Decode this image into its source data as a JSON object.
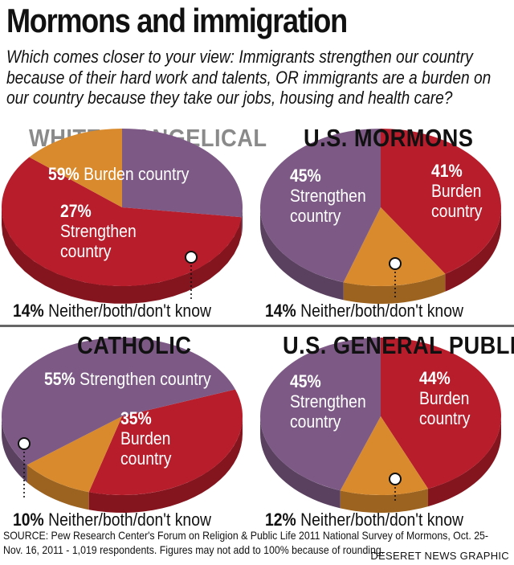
{
  "title": "Mormons and immigration",
  "question": "Which comes closer to your view: Immigrants strengthen our country because of their hard work and talents, OR immigrants are a burden on our country because they take our jobs, housing and health care?",
  "colors": {
    "burden": "#b71d2b",
    "strengthen": "#7d5a85",
    "neither": "#d88a2c"
  },
  "chart_data": [
    {
      "type": "pie",
      "title": "WHITE EVANGELICAL",
      "slices": [
        {
          "label": "Burden country",
          "value": 59
        },
        {
          "label": "Strengthen country",
          "value": 27
        },
        {
          "label": "Neither/both/don't know",
          "value": 14
        }
      ]
    },
    {
      "type": "pie",
      "title": "U.S. MORMONS",
      "slices": [
        {
          "label": "Burden country",
          "value": 41
        },
        {
          "label": "Strengthen country",
          "value": 45
        },
        {
          "label": "Neither/both/don't know",
          "value": 14
        }
      ]
    },
    {
      "type": "pie",
      "title": "CATHOLIC",
      "slices": [
        {
          "label": "Burden country",
          "value": 35
        },
        {
          "label": "Strengthen country",
          "value": 55
        },
        {
          "label": "Neither/both/don't know",
          "value": 10
        }
      ]
    },
    {
      "type": "pie",
      "title": "U.S. GENERAL PUBLIC",
      "slices": [
        {
          "label": "Burden country",
          "value": 44
        },
        {
          "label": "Strengthen country",
          "value": 45
        },
        {
          "label": "Neither/both/don't know",
          "value": 12
        }
      ]
    }
  ],
  "labels": {
    "evangelical": {
      "burden_pct": "59%",
      "burden_text": "Burden country",
      "strengthen_pct": "27%",
      "strengthen_l1": "Strengthen",
      "strengthen_l2": "country",
      "neither_pct": "14%",
      "neither_text": "Neither/both/don't know"
    },
    "mormons": {
      "strengthen_pct": "45%",
      "strengthen_l1": "Strengthen",
      "strengthen_l2": "country",
      "burden_pct": "41%",
      "burden_l1": "Burden",
      "burden_l2": "country",
      "neither_pct": "14%",
      "neither_text": "Neither/both/don't know"
    },
    "catholic": {
      "strengthen_pct": "55%",
      "strengthen_text": "Strengthen country",
      "burden_pct": "35%",
      "burden_l1": "Burden",
      "burden_l2": "country",
      "neither_pct": "10%",
      "neither_text": "Neither/both/don't know"
    },
    "general": {
      "strengthen_pct": "45%",
      "strengthen_l1": "Strengthen",
      "strengthen_l2": "country",
      "burden_pct": "44%",
      "burden_l1": "Burden",
      "burden_l2": "country",
      "neither_pct": "12%",
      "neither_text": "Neither/both/don't know"
    }
  },
  "source": "SOURCE: Pew Research Center's Forum on Religion & Public Life 2011 National Survey of Mormons, Oct. 25-Nov. 16, 2011 - 1,019 respondents. Figures may not add to 100% because of rounding.",
  "credit": "DESERET NEWS GRAPHIC"
}
